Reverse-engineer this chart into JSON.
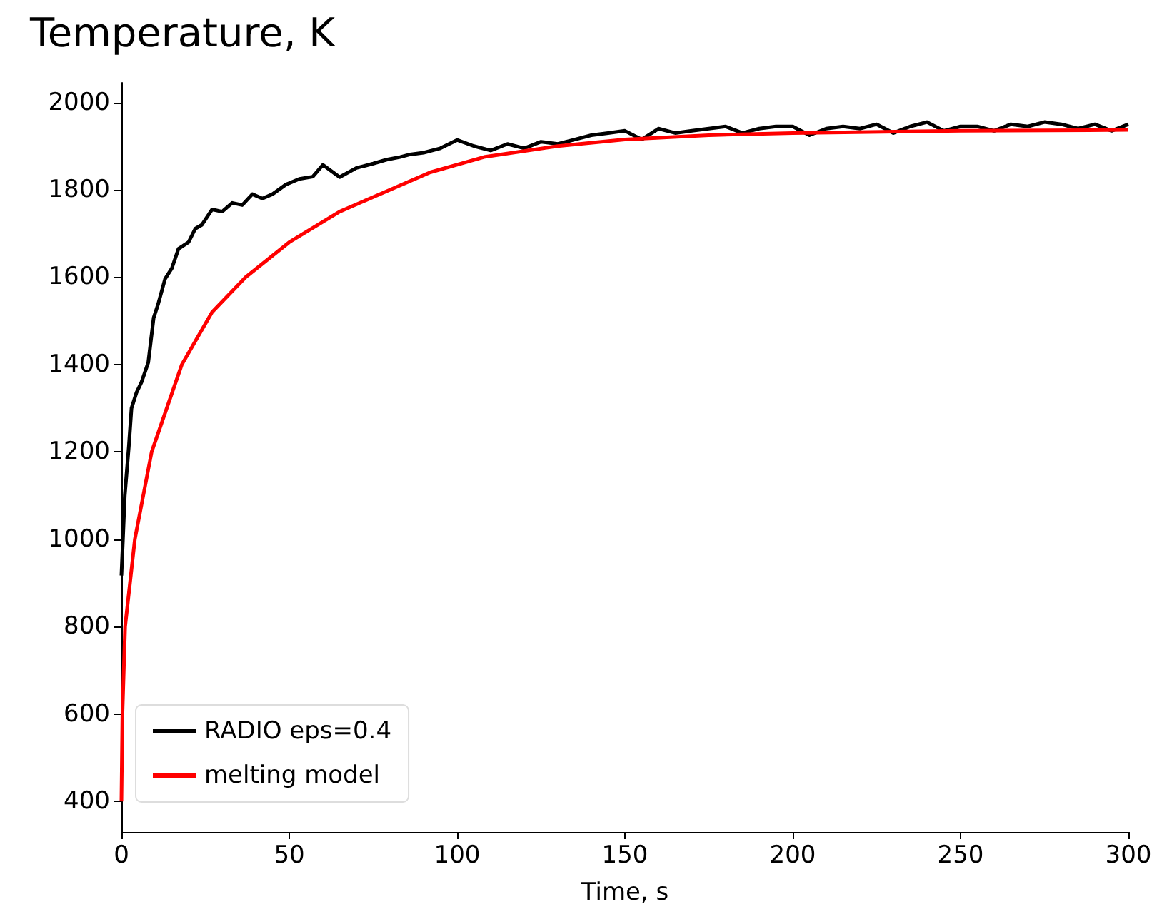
{
  "chart_data": {
    "type": "line",
    "title": "Temperature, K",
    "xlabel": "Time, s",
    "xlim": [
      0,
      300
    ],
    "xticks": [
      0,
      50,
      100,
      150,
      200,
      250,
      300
    ],
    "ylim": [
      330,
      2045
    ],
    "yticks": [
      400,
      600,
      800,
      1000,
      1200,
      1400,
      1600,
      1800,
      2000
    ],
    "grid": false,
    "legend": "bottom left",
    "marker": "none",
    "line_style": "solid",
    "series": [
      {
        "name": "RADIO eps=0.4",
        "color": "#000000",
        "x": [
          0,
          1,
          2.2,
          3,
          4.5,
          6,
          8,
          9.6,
          11,
          13,
          15,
          17,
          20,
          22,
          24,
          27,
          30,
          33,
          36,
          39,
          42,
          45,
          49,
          53,
          57,
          60,
          65,
          70,
          75,
          79,
          83,
          86,
          90,
          95,
          100,
          105,
          110,
          115,
          120,
          125,
          130,
          135,
          140,
          145,
          150,
          155,
          160,
          165,
          170,
          175,
          180,
          185,
          190,
          195,
          200,
          205,
          210,
          215,
          220,
          225,
          230,
          235,
          240,
          245,
          250,
          255,
          260,
          265,
          270,
          275,
          280,
          285,
          290,
          295,
          300
        ],
        "values": [
          917,
          1100,
          1212,
          1300,
          1336,
          1360,
          1405,
          1507,
          1540,
          1596,
          1620,
          1665,
          1680,
          1711,
          1720,
          1755,
          1750,
          1770,
          1765,
          1790,
          1780,
          1790,
          1812,
          1825,
          1830,
          1857,
          1829,
          1850,
          1860,
          1869,
          1875,
          1881,
          1885,
          1895,
          1914,
          1900,
          1890,
          1905,
          1895,
          1910,
          1905,
          1915,
          1925,
          1930,
          1935,
          1915,
          1940,
          1930,
          1935,
          1940,
          1945,
          1930,
          1940,
          1945,
          1945,
          1925,
          1940,
          1945,
          1940,
          1950,
          1930,
          1945,
          1955,
          1935,
          1945,
          1945,
          1935,
          1950,
          1945,
          1955,
          1950,
          1940,
          1950,
          1935,
          1950
        ]
      },
      {
        "name": "melting model",
        "color": "#ff0000",
        "x": [
          0,
          0.3,
          1.1,
          4,
          9,
          18,
          27,
          37,
          50,
          65,
          80,
          92,
          108,
          130,
          150,
          175,
          200,
          250,
          300
        ],
        "values": [
          400,
          600,
          800,
          1000,
          1200,
          1400,
          1520,
          1600,
          1680,
          1750,
          1800,
          1840,
          1875,
          1900,
          1915,
          1925,
          1930,
          1935,
          1937
        ]
      }
    ]
  }
}
